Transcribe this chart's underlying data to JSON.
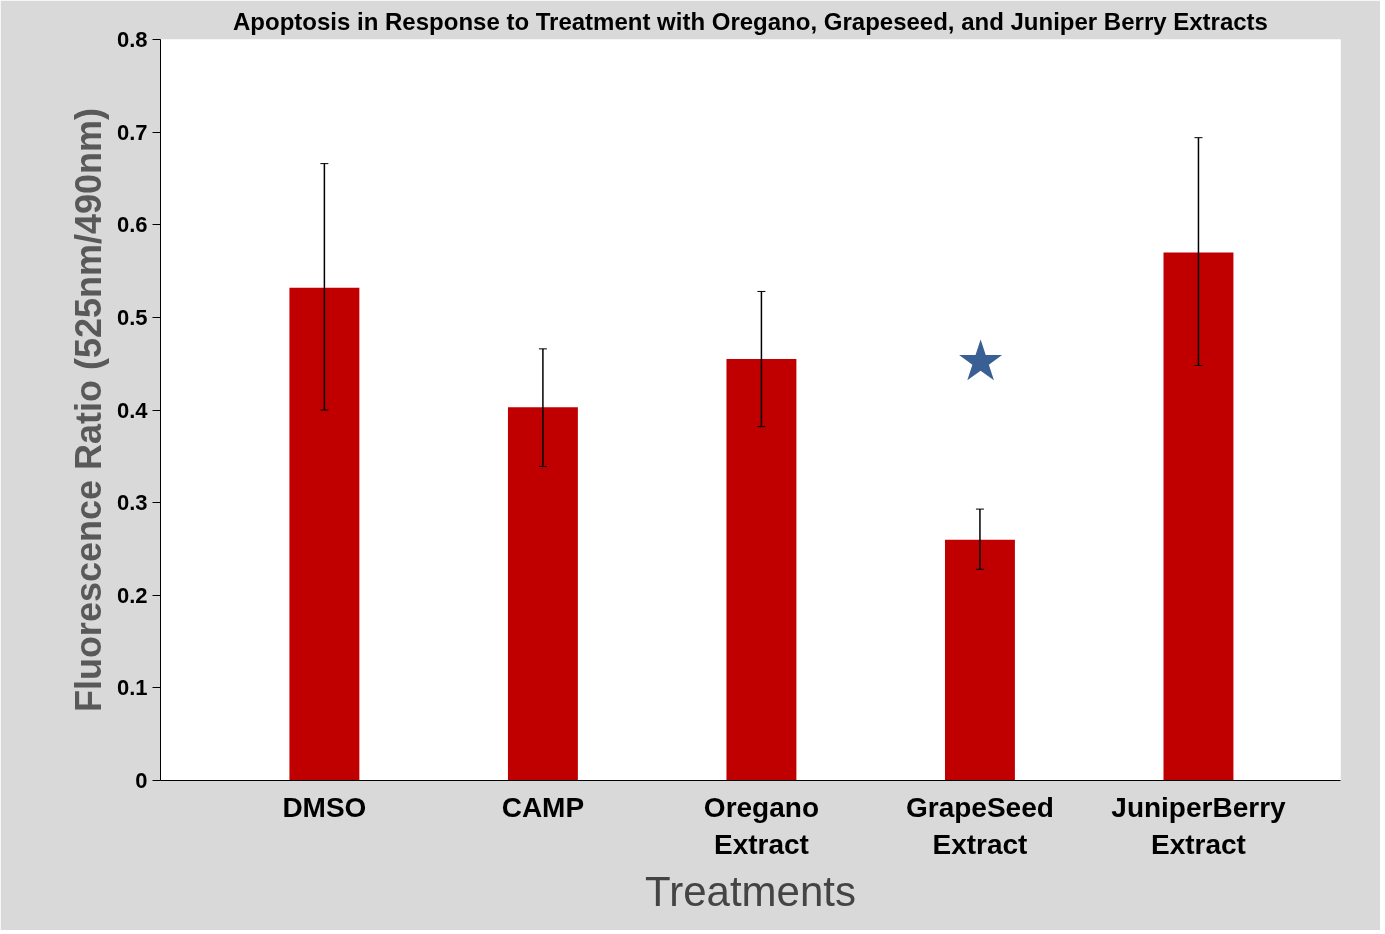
{
  "chart_data": {
    "type": "bar",
    "title": "Apoptosis in Response to Treatment with Oregano, Grapeseed, and Juniper Berry Extracts",
    "xlabel": "Treatments",
    "ylabel": "Fluorescence Ratio (525nm/490nm)",
    "categories": [
      "DMSO",
      "CAMP",
      "Oregano Extract",
      "GrapeSeed Extract",
      "JuniperBerry Extract"
    ],
    "values": [
      0.532,
      0.403,
      0.455,
      0.26,
      0.57
    ],
    "errors": [
      [
        0.4,
        0.666
      ],
      [
        0.339,
        0.466
      ],
      [
        0.382,
        0.528
      ],
      [
        0.228,
        0.293
      ],
      [
        0.448,
        0.694
      ]
    ],
    "color": "#c00000",
    "ylim": [
      0,
      0.8
    ],
    "yticks": [
      0,
      0.1,
      0.2,
      0.3,
      0.4,
      0.5,
      0.6,
      0.7,
      0.8
    ],
    "grid": false,
    "annotations": [
      "★"
    ]
  }
}
